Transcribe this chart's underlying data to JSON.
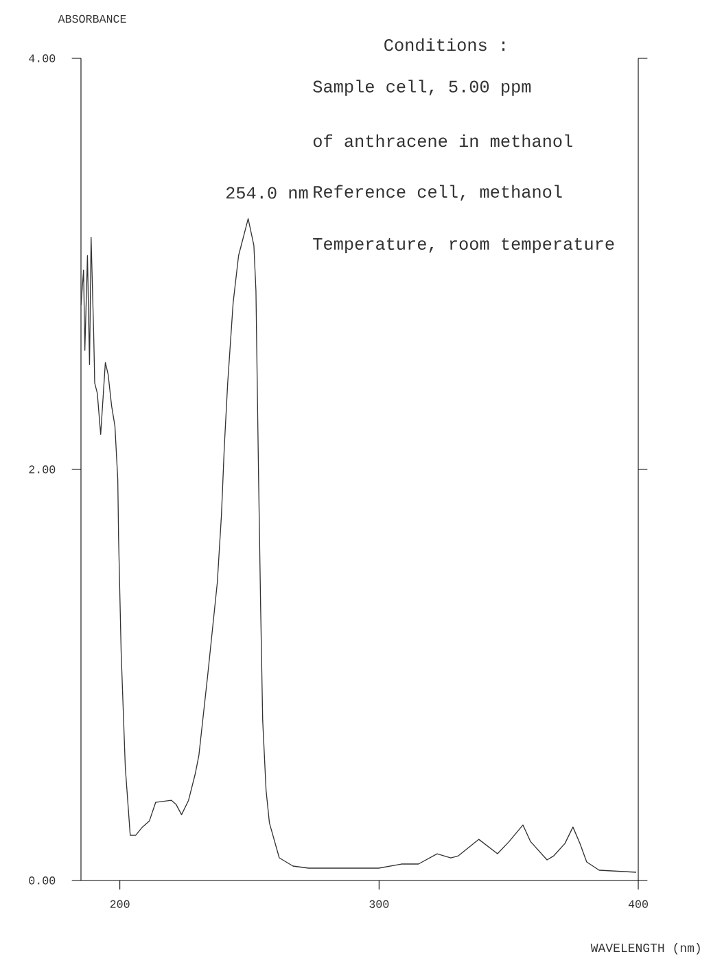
{
  "chart_data": {
    "type": "line",
    "xlabel": "WAVELENGTH (nm)",
    "ylabel": "ABSORBANCE",
    "xlim": [
      185,
      400
    ],
    "ylim": [
      0,
      4
    ],
    "xticks": [
      200,
      300,
      400
    ],
    "yticks": [
      {
        "value": 0,
        "label": "0.00"
      },
      {
        "value": 2,
        "label": "2.00"
      },
      {
        "value": 4,
        "label": "4.00"
      }
    ],
    "annotations": [
      "Conditions  :",
      "Sample cell, 5.00 ppm",
      "of anthracene in methanol",
      "Reference cell, methanol",
      "Temperature, room temperature",
      "254.0 nm"
    ],
    "series": [
      {
        "color": "#333333",
        "x": [
          185.0,
          186.0,
          186.5,
          187.5,
          188.3,
          188.9,
          189.9,
          190.3,
          191.3,
          192.6,
          194.4,
          195.5,
          196.8,
          198.1,
          199.2,
          199.5,
          200.5,
          202.1,
          204.0,
          206.1,
          208.7,
          211.4,
          213.8,
          219.9,
          221.7,
          223.8,
          226.5,
          229.1,
          230.5,
          233.9,
          237.6,
          239.2,
          240.3,
          241.6,
          243.7,
          245.8,
          249.5,
          251.7,
          252.5,
          253.0,
          253.5,
          254.3,
          255.1,
          256.4,
          257.7,
          261.5,
          266.8,
          272.8,
          296.7,
          299.9,
          308.6,
          315.2,
          322.4,
          327.7,
          330.6,
          338.5,
          345.7,
          350.2,
          355.5,
          358.4,
          364.8,
          367.4,
          371.7,
          374.8,
          377.5,
          380.1,
          384.9,
          399.2
        ],
        "values": [
          2.8,
          2.97,
          2.58,
          3.04,
          2.51,
          3.13,
          2.66,
          2.42,
          2.37,
          2.17,
          2.52,
          2.46,
          2.31,
          2.21,
          1.95,
          1.67,
          1.11,
          0.55,
          0.22,
          0.22,
          0.26,
          0.29,
          0.38,
          0.39,
          0.37,
          0.32,
          0.39,
          0.52,
          0.61,
          1.0,
          1.45,
          1.78,
          2.11,
          2.42,
          2.81,
          3.04,
          3.22,
          3.09,
          2.87,
          2.42,
          1.98,
          1.34,
          0.78,
          0.44,
          0.28,
          0.11,
          0.07,
          0.06,
          0.06,
          0.06,
          0.08,
          0.08,
          0.13,
          0.11,
          0.12,
          0.2,
          0.13,
          0.19,
          0.27,
          0.19,
          0.1,
          0.12,
          0.18,
          0.26,
          0.18,
          0.09,
          0.05,
          0.04
        ]
      }
    ]
  }
}
